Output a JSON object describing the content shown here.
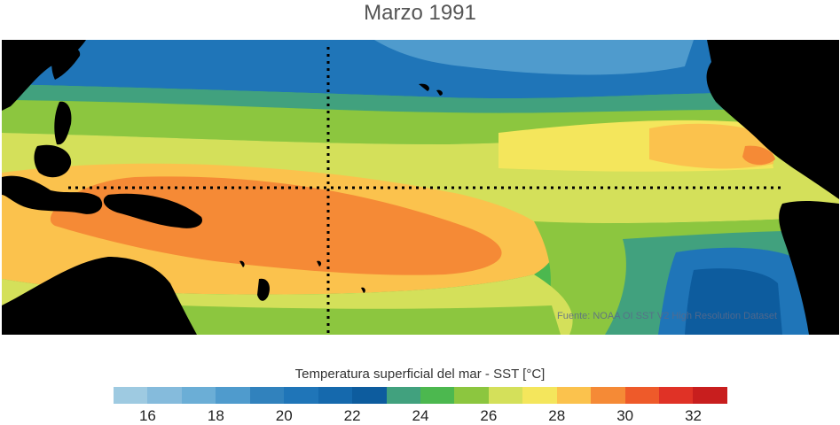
{
  "title": "Marzo 1991",
  "source_note": "Fuente: NOAA OI SST V2 High Resolution Dataset",
  "colorbar": {
    "label": "Temperatura superficial del mar - SST  [°C]",
    "min": 15,
    "max": 33,
    "step": 1,
    "colors": [
      "#9ecae1",
      "#85bbdc",
      "#6baed6",
      "#4f9bcd",
      "#3182bd",
      "#1f75b8",
      "#1569ad",
      "#0d5c9e",
      "#41a17e",
      "#4cb84f",
      "#8cc63f",
      "#d4e05a",
      "#f4e65c",
      "#fbc24d",
      "#f58a36",
      "#ee5a2a",
      "#e03226",
      "#c81e1e"
    ],
    "tick_labels": [
      "16",
      "18",
      "20",
      "22",
      "24",
      "26",
      "28",
      "30",
      "32"
    ]
  },
  "map": {
    "region": "Pacífico tropical",
    "dotted_lines": [
      "equator",
      "date-line meridian"
    ],
    "land_color": "#000000",
    "temperature_bands": [
      {
        "label": "north cold",
        "temp": 20
      },
      {
        "label": "north temperate",
        "temp": 24
      },
      {
        "label": "north subtropical",
        "temp": 26
      },
      {
        "label": "equatorial",
        "temp": 27
      },
      {
        "label": "warm pool",
        "temp": 29
      },
      {
        "label": "south subtropical",
        "temp": 26
      },
      {
        "label": "south cold tongue",
        "temp": 21
      }
    ]
  }
}
